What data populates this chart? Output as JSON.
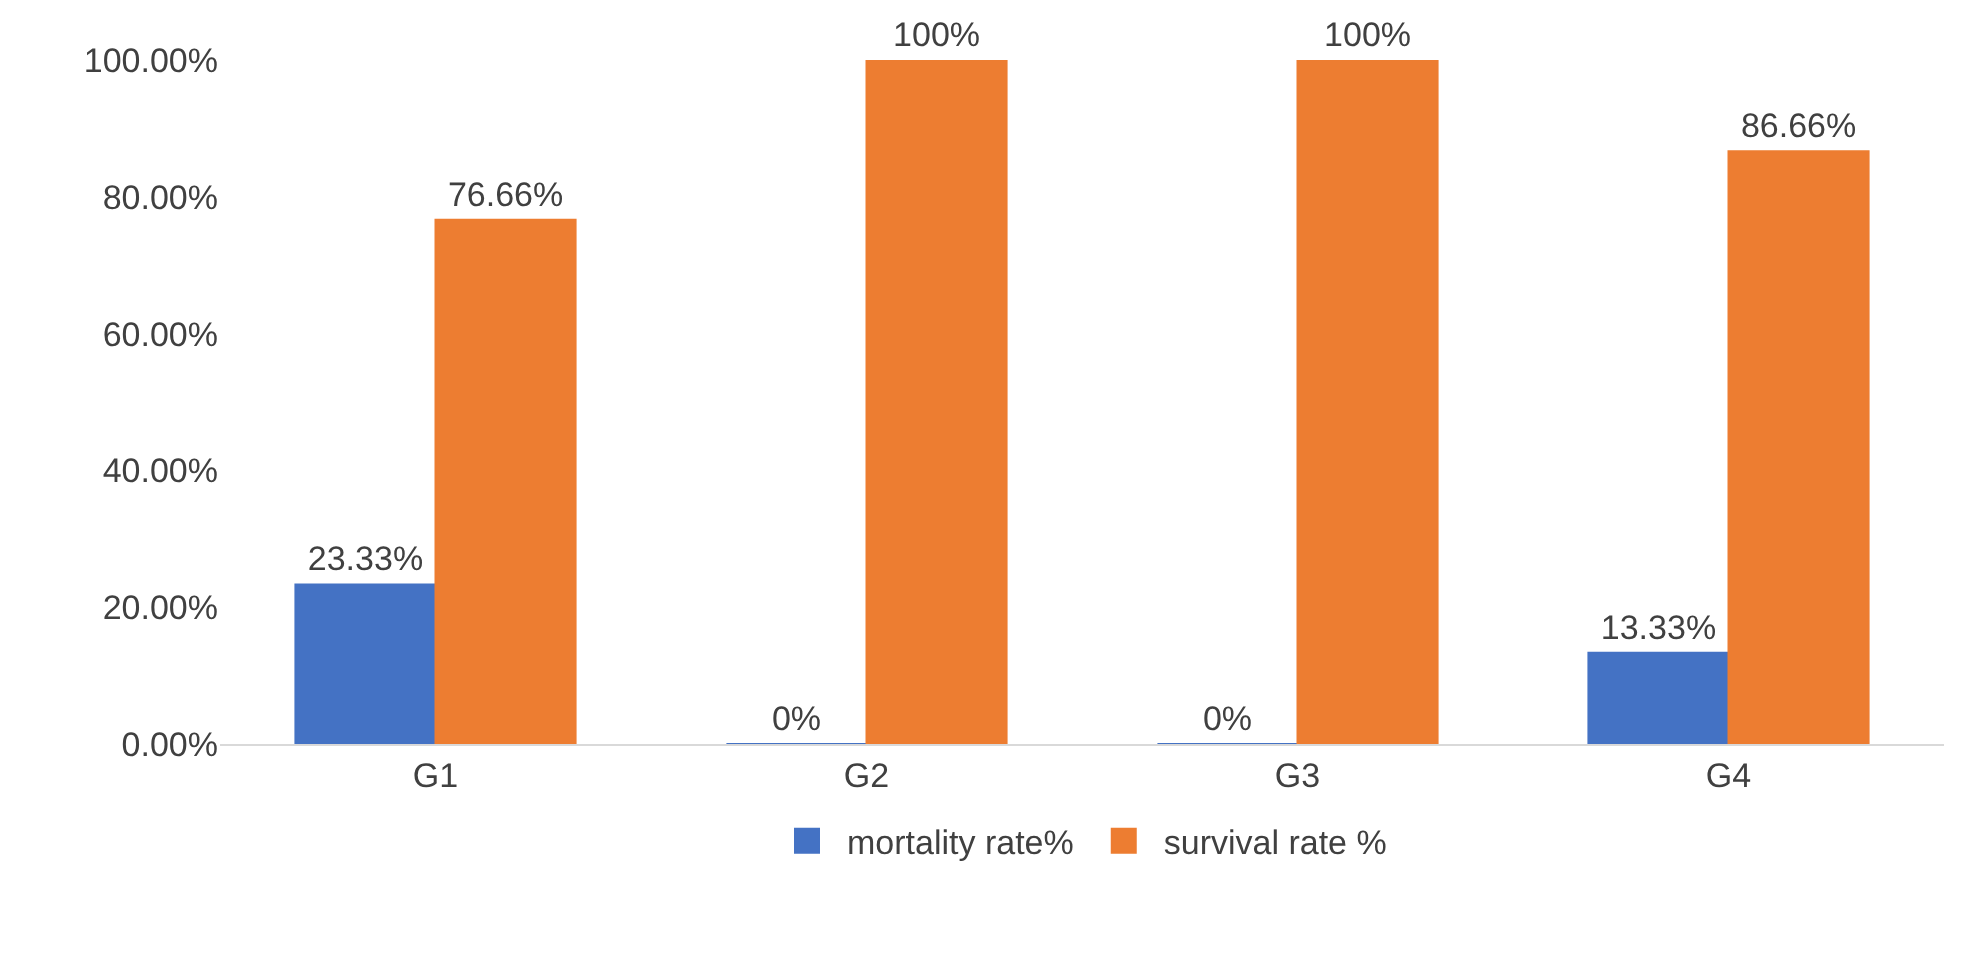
{
  "chart_data": {
    "type": "bar",
    "categories": [
      "G1",
      "G2",
      "G3",
      "G4"
    ],
    "series": [
      {
        "name": "mortality rate%",
        "color": "#4472c4",
        "values": [
          23.33,
          0,
          0,
          13.33
        ],
        "value_labels": [
          "23.33%",
          "0%",
          "0%",
          "13.33%"
        ]
      },
      {
        "name": "survival rate %",
        "color": "#ed7d31",
        "values": [
          76.66,
          100,
          100,
          86.66
        ],
        "value_labels": [
          "76.66%",
          "100%",
          "100%",
          "86.66%"
        ]
      }
    ],
    "ylim": [
      0,
      100
    ],
    "yticks": [
      {
        "value": 0,
        "label": "0.00%"
      },
      {
        "value": 20,
        "label": "20.00%"
      },
      {
        "value": 40,
        "label": "40.00%"
      },
      {
        "value": 60,
        "label": "60.00%"
      },
      {
        "value": 80,
        "label": "80.00%"
      },
      {
        "value": 100,
        "label": "100.00%"
      }
    ],
    "grid": false,
    "legend": "bottom"
  }
}
